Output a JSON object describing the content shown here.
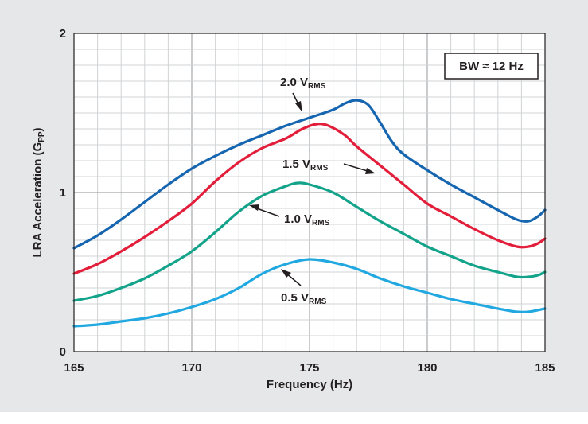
{
  "chart_data": {
    "type": "line",
    "xlabel": "Frequency (Hz)",
    "ylabel_main": "LRA Acceleration (G",
    "ylabel_sub": "PP",
    "ylabel_tail": ")",
    "xlim": [
      165,
      185
    ],
    "ylim": [
      0,
      2
    ],
    "x_ticks": [
      "165",
      "170",
      "175",
      "180",
      "185"
    ],
    "y_ticks": [
      "0",
      "1",
      "2"
    ],
    "grid": true,
    "annotation": "BW ≈ 12 Hz",
    "colors": {
      "v20": "#1565b0",
      "v15": "#e31e3a",
      "v10": "#13a38a",
      "v05": "#21a8e0"
    },
    "series": [
      {
        "key": "v20",
        "label_main": "2.0 V",
        "label_sub": "RMS",
        "color": "#1565b0",
        "points": [
          [
            165,
            0.65
          ],
          [
            166,
            0.73
          ],
          [
            167,
            0.83
          ],
          [
            168,
            0.94
          ],
          [
            169,
            1.05
          ],
          [
            170,
            1.15
          ],
          [
            171,
            1.23
          ],
          [
            172,
            1.3
          ],
          [
            173,
            1.36
          ],
          [
            174,
            1.42
          ],
          [
            175,
            1.47
          ],
          [
            176,
            1.52
          ],
          [
            176.5,
            1.56
          ],
          [
            177,
            1.58
          ],
          [
            177.5,
            1.55
          ],
          [
            178,
            1.44
          ],
          [
            178.5,
            1.32
          ],
          [
            179,
            1.24
          ],
          [
            180,
            1.14
          ],
          [
            181,
            1.05
          ],
          [
            182,
            0.97
          ],
          [
            183,
            0.89
          ],
          [
            183.8,
            0.83
          ],
          [
            184.3,
            0.82
          ],
          [
            184.7,
            0.85
          ],
          [
            185,
            0.89
          ]
        ]
      },
      {
        "key": "v15",
        "label_main": "1.5 V",
        "label_sub": "RMS",
        "color": "#e31e3a",
        "points": [
          [
            165,
            0.49
          ],
          [
            166,
            0.55
          ],
          [
            167,
            0.63
          ],
          [
            168,
            0.72
          ],
          [
            169,
            0.82
          ],
          [
            170,
            0.93
          ],
          [
            171,
            1.07
          ],
          [
            172,
            1.19
          ],
          [
            173,
            1.28
          ],
          [
            174,
            1.34
          ],
          [
            174.7,
            1.4
          ],
          [
            175.3,
            1.43
          ],
          [
            175.8,
            1.42
          ],
          [
            176.5,
            1.36
          ],
          [
            177,
            1.29
          ],
          [
            178,
            1.17
          ],
          [
            179,
            1.05
          ],
          [
            180,
            0.93
          ],
          [
            181,
            0.85
          ],
          [
            182,
            0.77
          ],
          [
            183,
            0.7
          ],
          [
            183.8,
            0.66
          ],
          [
            184.3,
            0.66
          ],
          [
            184.7,
            0.68
          ],
          [
            185,
            0.71
          ]
        ]
      },
      {
        "key": "v10",
        "label_main": "1.0 V",
        "label_sub": "RMS",
        "color": "#13a38a",
        "points": [
          [
            165,
            0.32
          ],
          [
            166,
            0.35
          ],
          [
            167,
            0.4
          ],
          [
            168,
            0.46
          ],
          [
            169,
            0.54
          ],
          [
            170,
            0.63
          ],
          [
            171,
            0.75
          ],
          [
            172,
            0.88
          ],
          [
            173,
            0.98
          ],
          [
            174,
            1.04
          ],
          [
            174.5,
            1.06
          ],
          [
            175,
            1.05
          ],
          [
            176,
            1.0
          ],
          [
            177,
            0.91
          ],
          [
            178,
            0.82
          ],
          [
            179,
            0.74
          ],
          [
            180,
            0.66
          ],
          [
            181,
            0.6
          ],
          [
            182,
            0.54
          ],
          [
            183,
            0.5
          ],
          [
            183.8,
            0.47
          ],
          [
            184.3,
            0.47
          ],
          [
            184.7,
            0.48
          ],
          [
            185,
            0.5
          ]
        ]
      },
      {
        "key": "v05",
        "label_main": "0.5 V",
        "label_sub": "RMS",
        "color": "#21a8e0",
        "points": [
          [
            165,
            0.16
          ],
          [
            166,
            0.17
          ],
          [
            167,
            0.19
          ],
          [
            168,
            0.21
          ],
          [
            169,
            0.24
          ],
          [
            170,
            0.28
          ],
          [
            171,
            0.33
          ],
          [
            172,
            0.4
          ],
          [
            173,
            0.49
          ],
          [
            174,
            0.55
          ],
          [
            175,
            0.58
          ],
          [
            176,
            0.56
          ],
          [
            177,
            0.52
          ],
          [
            178,
            0.46
          ],
          [
            179,
            0.41
          ],
          [
            180,
            0.37
          ],
          [
            181,
            0.33
          ],
          [
            182,
            0.3
          ],
          [
            183,
            0.27
          ],
          [
            183.8,
            0.25
          ],
          [
            184.3,
            0.25
          ],
          [
            185,
            0.27
          ]
        ]
      }
    ]
  }
}
